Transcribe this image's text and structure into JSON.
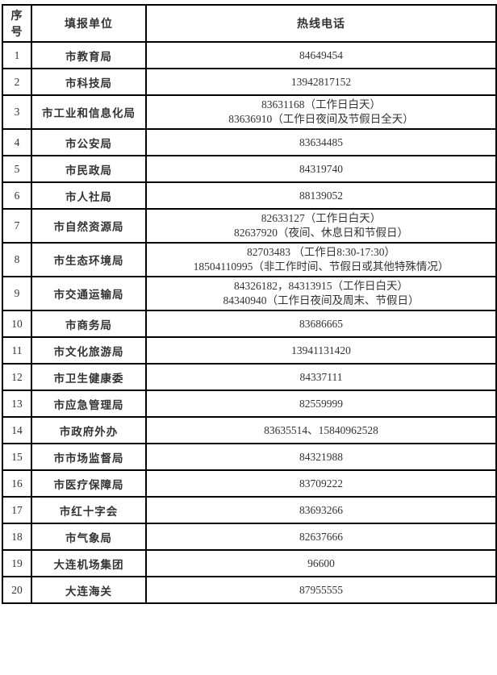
{
  "table": {
    "headers": {
      "serial": "序号",
      "unit": "填报单位",
      "phone": "热线电话"
    },
    "rows": [
      {
        "no": "1",
        "unit": "市教育局",
        "phone": "84649454"
      },
      {
        "no": "2",
        "unit": "市科技局",
        "phone": "13942817152"
      },
      {
        "no": "3",
        "unit": "市工业和信息化局",
        "phone": "83631168（工作日白天）\n83636910（工作日夜间及节假日全天）"
      },
      {
        "no": "4",
        "unit": "市公安局",
        "phone": "83634485"
      },
      {
        "no": "5",
        "unit": "市民政局",
        "phone": "84319740"
      },
      {
        "no": "6",
        "unit": "市人社局",
        "phone": "88139052"
      },
      {
        "no": "7",
        "unit": "市自然资源局",
        "phone": "82633127（工作日白天）\n82637920（夜间、休息日和节假日）"
      },
      {
        "no": "8",
        "unit": "市生态环境局",
        "phone": "82703483 （工作日8:30-17:30）\n18504110995（非工作时间、节假日或其他特殊情况）"
      },
      {
        "no": "9",
        "unit": "市交通运输局",
        "phone": "84326182，84313915（工作日白天）\n84340940（工作日夜间及周末、节假日）"
      },
      {
        "no": "10",
        "unit": "市商务局",
        "phone": "83686665"
      },
      {
        "no": "11",
        "unit": "市文化旅游局",
        "phone": "13941131420"
      },
      {
        "no": "12",
        "unit": "市卫生健康委",
        "phone": "84337111"
      },
      {
        "no": "13",
        "unit": "市应急管理局",
        "phone": "82559999"
      },
      {
        "no": "14",
        "unit": "市政府外办",
        "phone": "83635514、15840962528"
      },
      {
        "no": "15",
        "unit": "市市场监督局",
        "phone": "84321988"
      },
      {
        "no": "16",
        "unit": "市医疗保障局",
        "phone": "83709222"
      },
      {
        "no": "17",
        "unit": "市红十字会",
        "phone": "83693266"
      },
      {
        "no": "18",
        "unit": "市气象局",
        "phone": "82637666"
      },
      {
        "no": "19",
        "unit": "大连机场集团",
        "phone": "96600"
      },
      {
        "no": "20",
        "unit": "大连海关",
        "phone": "87955555"
      }
    ],
    "colors": {
      "border": "#000000",
      "text": "#333333",
      "background": "#ffffff"
    }
  }
}
